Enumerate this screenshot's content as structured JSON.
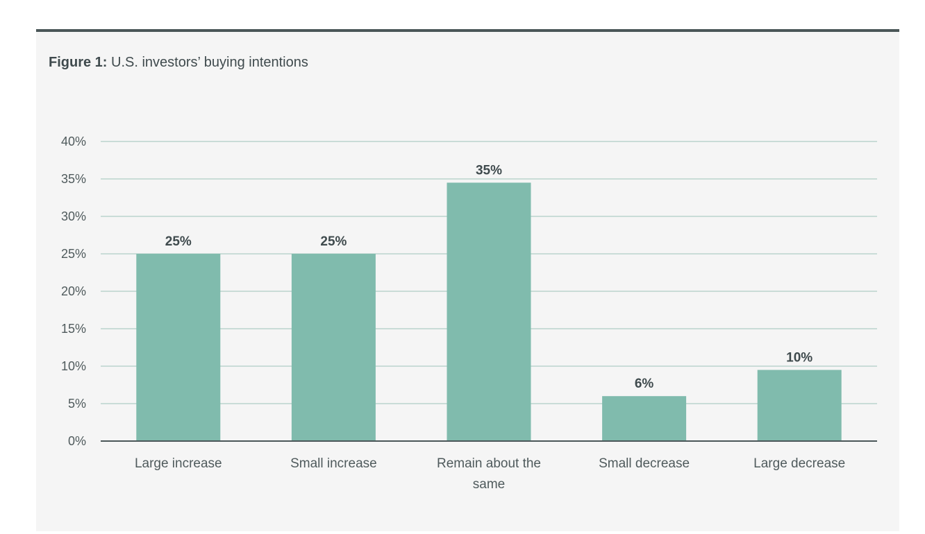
{
  "figure": {
    "title_lead": "Figure 1:",
    "title_text": "U.S. investors’ buying intentions"
  },
  "colors": {
    "bar": "#80bbad",
    "grid": "#c9dcd7",
    "axis": "#4a5658"
  },
  "chart_data": {
    "type": "bar",
    "title": "Figure 1: U.S. investors’ buying intentions",
    "xlabel": "",
    "ylabel": "",
    "ylim": [
      0,
      40
    ],
    "yticks": [
      0,
      5,
      10,
      15,
      20,
      25,
      30,
      35,
      40
    ],
    "ytick_labels": [
      "0%",
      "5%",
      "10%",
      "15%",
      "20%",
      "25%",
      "30%",
      "35%",
      "40%"
    ],
    "grid": true,
    "categories": [
      [
        "Large increase"
      ],
      [
        "Small increase"
      ],
      [
        "Remain about the",
        "same"
      ],
      [
        "Small decrease"
      ],
      [
        "Large decrease"
      ]
    ],
    "values": [
      25,
      25,
      34.5,
      6,
      9.5
    ],
    "data_labels": [
      "25%",
      "25%",
      "35%",
      "6%",
      "10%"
    ]
  }
}
